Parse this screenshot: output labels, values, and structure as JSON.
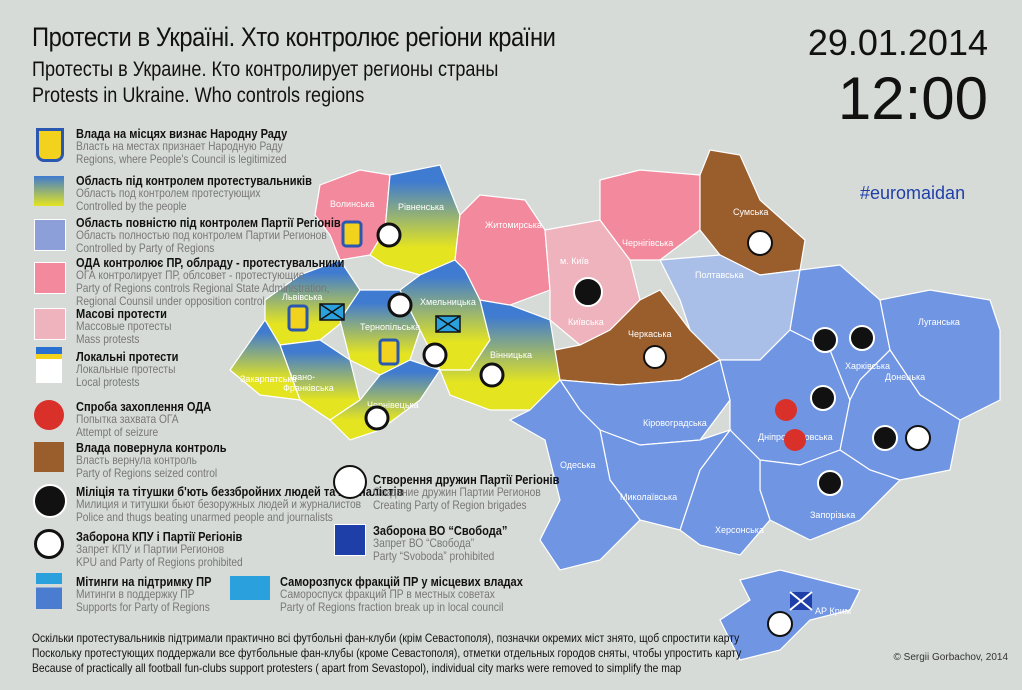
{
  "title": {
    "ua": "Протести в Україні. Хто контролює регіони країни",
    "ru": "Протесты в Украине. Кто контролирует  регионы страны",
    "en": "Protests in Ukraine. Who controls regions"
  },
  "date": "29.01.2014",
  "time": "12:00",
  "hashtag": "#euromaidan",
  "colors": {
    "people": [
      "#3f7bd0",
      "#e4e420"
    ],
    "party_of_regions": "#6f95e3",
    "party_of_regions_legend": "#8c9fd8",
    "oda_pr": "#f2899c",
    "mass_protests": "#efb3bd",
    "seized": "#9a5d2c",
    "background": "#d7dbd8"
  },
  "legend": [
    {
      "icon": "trident-icon",
      "ua": "Влада на місцях визнає Народну Раду",
      "ru": "Власть на местах признает Народную Раду",
      "en": "Regions, where People's Council is legitimized"
    },
    {
      "icon": "gradient-swatch",
      "ua": "Область під контролем протестувальників",
      "ru": "Область под контролем протестующих",
      "en": "Controlled by the people"
    },
    {
      "icon": "blue-swatch",
      "ua": "Область повністю під контролем Партії Регіонів",
      "ru": "Область полностью под контролем Партии Регионов",
      "en": "Controlled by Party of Regions"
    },
    {
      "icon": "pink-swatch",
      "ua": "ОДА контролює ПР, облраду - протестувальники",
      "ru": "ОГА контролирует ПР, облсовет - протестующие",
      "en": "Party of Regions controls Regional State Administration,",
      "en2": "Regional Counsil under opposition control"
    },
    {
      "icon": "light-pink-swatch",
      "ua": "Масові протести",
      "ru": "Массовые протесты",
      "en": "Mass protests"
    },
    {
      "icon": "protest-flag-icon",
      "ua": "Локальні протести",
      "ru": "Локальные протесты",
      "en": "Local protests"
    },
    {
      "icon": "building-seizure-icon",
      "ua": "Спроба захоплення ОДА",
      "ru": "Попытка захвата ОГА",
      "en": "Attempt of seizure"
    },
    {
      "icon": "brown-swatch",
      "ua": "Влада повернула контроль",
      "ru": "Власть вернула контроль",
      "en": "Party of Regions seized control"
    },
    {
      "icon": "police-beating-icon",
      "ua": "Міліція та тітушки б'ють беззбройних людей та журналістів",
      "ru": "Милиция и титушки бьют безоружных людей и журналистов",
      "en": "Police and thugs beating unarmed people and journalists"
    },
    {
      "icon": "ban-kpu-icon",
      "ua": "Заборона КПУ і Партії Регіонів",
      "ru": "Запрет КПУ и Партии Регионов",
      "en": "KPU and Party of Regions prohibited"
    },
    {
      "icon": "pr-rally-icon",
      "ua": "Мітинги на підтримку ПР",
      "ru": "Митинги в поддержку ПР",
      "en": "Supports for Party of Regions"
    },
    {
      "icon": "pr-brigade-icon",
      "ua": "Створення дружин Партії Регіонів",
      "ru": "Создание дружин Партии Регионов",
      "en": "Creating Party of Region brigades"
    },
    {
      "icon": "ban-svoboda-icon",
      "ua": "Заборона ВО “Свобода”",
      "ru": "Запрет ВО “Свобода”",
      "en": "Party “Svoboda” prohibited"
    },
    {
      "icon": "pr-faction-dissolved-icon",
      "ua": "Саморозпуск фракцій ПР у місцевих владах",
      "ru": "Самороспуск фракций ПР в местных советах",
      "en": "Party of Regions fraction break up in local council"
    }
  ],
  "regions": {
    "volyn": "Волинська",
    "rivne": "Рівненська",
    "lviv": "Львівська",
    "ternopil": "Тернопільська",
    "khmelnytskyi": "Хмельницька",
    "ivano": "Івано-",
    "ivano2": "Франківська",
    "zakarpattia": "Закарпатська",
    "chernivtsi": "Чернівецька",
    "vinnytsia": "Вінницька",
    "zhytomyr": "Житомирська",
    "kyiv_city": "м. Київ",
    "kyiv": "Київська",
    "chernihiv": "Чернігівська",
    "sumy": "Сумська",
    "poltava": "Полтавська",
    "cherkasy": "Черкаська",
    "kirovohrad": "Кіровоградська",
    "dnipro": "Дніпропетровська",
    "kharkiv": "Харківська",
    "luhansk": "Луганська",
    "donetsk": "Донецька",
    "zaporizhzhia": "Запорізька",
    "kherson": "Херсонська",
    "mykolaiv": "Миколаївська",
    "odesa": "Одеська",
    "crimea": "АР Крим"
  },
  "footer": {
    "ua": "Оскільки протестувальників підтримали практично всі футбольні фан-клуби (крім Севастополя), позначки окремих міст знято, щоб спростити карту",
    "ru": "Поскольку протестующих поддержали все футбольные фан-клубы (кроме Севастополя), отметки отдельных городов сняты, чтобы упростить карту",
    "en": "Because of practically all football fun-clubs support protesters ( apart from Sevastopol), individual city marks were removed to simplify the map"
  },
  "copyright": "© Sergii Gorbachov, 2014"
}
